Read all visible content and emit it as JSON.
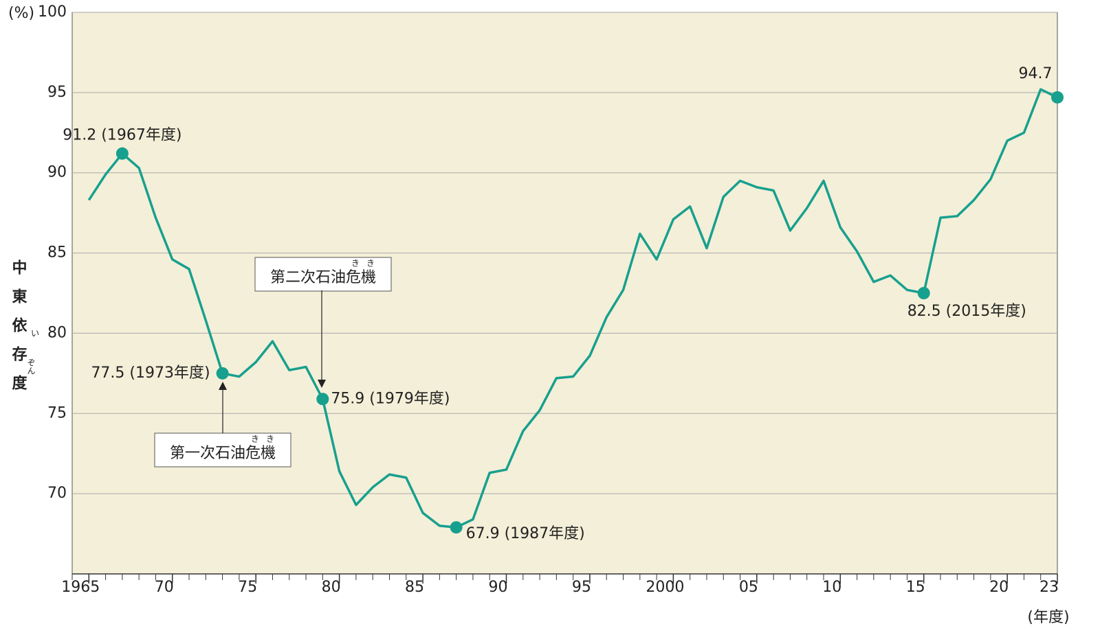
{
  "chart_data": {
    "type": "line",
    "ylabel": "中東依存度",
    "ylabel_ruby": [
      "い",
      "ぞん"
    ],
    "yunit": "(%)",
    "xunit": "(年度)",
    "x": [
      1965,
      1966,
      1967,
      1968,
      1969,
      1970,
      1971,
      1972,
      1973,
      1974,
      1975,
      1976,
      1977,
      1978,
      1979,
      1980,
      1981,
      1982,
      1983,
      1984,
      1985,
      1986,
      1987,
      1988,
      1989,
      1990,
      1991,
      1992,
      1993,
      1994,
      1995,
      1996,
      1997,
      1998,
      1999,
      2000,
      2001,
      2002,
      2003,
      2004,
      2005,
      2006,
      2007,
      2008,
      2009,
      2010,
      2011,
      2012,
      2013,
      2014,
      2015,
      2016,
      2017,
      2018,
      2019,
      2020,
      2021,
      2022,
      2023
    ],
    "series": [
      {
        "color": "#17a08e",
        "values": [
          88.3,
          89.9,
          91.2,
          90.3,
          87.2,
          84.6,
          84.0,
          80.8,
          77.5,
          77.3,
          78.2,
          79.5,
          77.7,
          77.9,
          75.9,
          71.4,
          69.3,
          70.4,
          71.2,
          71.0,
          68.8,
          68.0,
          67.9,
          68.4,
          71.3,
          71.5,
          73.9,
          75.2,
          77.2,
          77.3,
          78.6,
          81.0,
          82.7,
          86.2,
          84.6,
          87.1,
          87.9,
          85.3,
          88.5,
          89.5,
          89.1,
          88.9,
          86.4,
          87.8,
          89.5,
          86.6,
          85.1,
          83.2,
          83.6,
          82.7,
          82.5,
          87.2,
          87.3,
          88.3,
          89.6,
          92.0,
          92.5,
          95.2,
          94.7
        ],
        "value_labels": [
          null,
          null,
          "91.2 (1967年度)",
          null,
          null,
          null,
          null,
          null,
          "77.5 (1973年度)",
          null,
          null,
          null,
          null,
          null,
          "75.9 (1979年度)",
          null,
          null,
          null,
          null,
          null,
          null,
          null,
          "67.9 (1987年度)",
          null,
          null,
          null,
          null,
          null,
          null,
          null,
          null,
          null,
          null,
          null,
          null,
          null,
          null,
          null,
          null,
          null,
          null,
          null,
          null,
          null,
          null,
          null,
          null,
          null,
          null,
          null,
          "82.5 (2015年度)",
          null,
          null,
          null,
          null,
          null,
          null,
          null,
          "94.7"
        ]
      }
    ],
    "events": [
      {
        "label": "第一次石油危機",
        "ruby": "き"
      },
      {
        "label": "第二次石油危機",
        "ruby": "き"
      }
    ],
    "xlim": [
      1964,
      2023
    ],
    "xticks": [
      {
        "value": 1965,
        "label": "1965"
      },
      {
        "value": 1970,
        "label": "70"
      },
      {
        "value": 1975,
        "label": "75"
      },
      {
        "value": 1980,
        "label": "80"
      },
      {
        "value": 1985,
        "label": "85"
      },
      {
        "value": 1990,
        "label": "90"
      },
      {
        "value": 1995,
        "label": "95"
      },
      {
        "value": 2000,
        "label": "2000"
      },
      {
        "value": 2005,
        "label": "05"
      },
      {
        "value": 2010,
        "label": "10"
      },
      {
        "value": 2015,
        "label": "15"
      },
      {
        "value": 2020,
        "label": "20"
      },
      {
        "value": 2023,
        "label": "23"
      }
    ],
    "ylim": [
      65,
      100
    ],
    "yticks": [
      70,
      75,
      80,
      85,
      90,
      95,
      100
    ],
    "grid": true
  }
}
